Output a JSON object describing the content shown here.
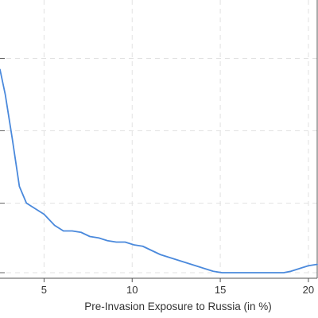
{
  "chart_data": {
    "type": "line",
    "xlabel": "Pre-Invasion Exposure to Russia (in %)",
    "ylabel": "",
    "title": "",
    "x_ticks": [
      5,
      10,
      15,
      20
    ],
    "xlim": [
      2.5,
      20.5
    ],
    "ylim": [
      0,
      1
    ],
    "y_gridlines": [
      0.02,
      0.27,
      0.53,
      0.79
    ],
    "grid": true,
    "line_color": "#4a89dc",
    "grid_color": "#e2e2e2",
    "series": [
      {
        "name": "",
        "x": [
          2.5,
          2.8,
          3.2,
          3.6,
          4.0,
          4.5,
          5.0,
          5.6,
          6.1,
          6.6,
          7.1,
          7.6,
          8.1,
          8.6,
          9.1,
          9.6,
          10.1,
          10.6,
          11.1,
          11.6,
          12.1,
          12.6,
          13.1,
          13.6,
          14.1,
          14.6,
          15.1,
          16.0,
          17.0,
          18.0,
          18.6,
          19.0,
          19.5,
          20.0,
          20.5
        ],
        "y": [
          0.75,
          0.66,
          0.5,
          0.33,
          0.27,
          0.25,
          0.23,
          0.19,
          0.17,
          0.17,
          0.165,
          0.15,
          0.145,
          0.135,
          0.13,
          0.13,
          0.12,
          0.115,
          0.1,
          0.085,
          0.075,
          0.065,
          0.055,
          0.045,
          0.035,
          0.025,
          0.02,
          0.02,
          0.02,
          0.02,
          0.02,
          0.025,
          0.035,
          0.045,
          0.05
        ]
      }
    ]
  }
}
